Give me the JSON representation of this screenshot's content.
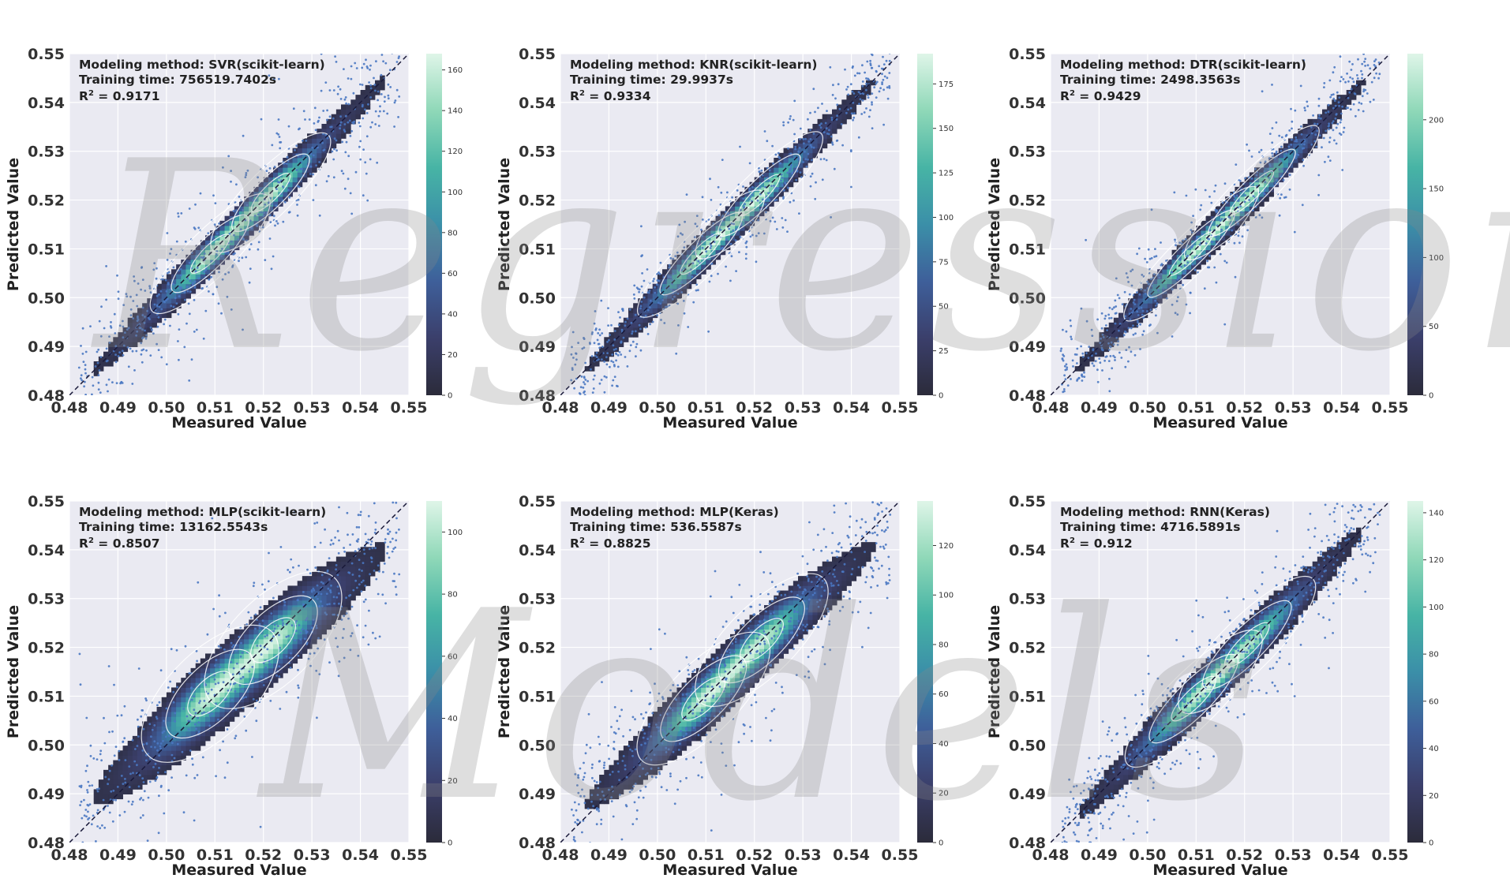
{
  "figure": {
    "watermark_lines": [
      "Regression",
      "Models"
    ],
    "colormap": [
      "#2b2b3a",
      "#3b3f6b",
      "#3e5f9a",
      "#3b8fa8",
      "#47b4a5",
      "#8fd8b8",
      "#dff5e8"
    ]
  },
  "chart_data": [
    {
      "type": "heatmap",
      "method_label": "Modeling method: SVR(scikit-learn)",
      "time_label": "Training time: 756519.7402s",
      "r2_value": "0.9171",
      "xlabel": "Measured Value",
      "ylabel": "Predicted Value",
      "xlim": [
        0.48,
        0.55
      ],
      "ylim": [
        0.48,
        0.55
      ],
      "ticks": [
        "0.48",
        "0.49",
        "0.50",
        "0.51",
        "0.52",
        "0.53",
        "0.54",
        "0.55"
      ],
      "colorbar": {
        "min": 0,
        "max": 168,
        "ticks": [
          0,
          20,
          40,
          60,
          80,
          100,
          120,
          140,
          160
        ]
      },
      "density": {
        "centers": [
          [
            0.509,
            0.509
          ],
          [
            0.5215,
            0.5215
          ]
        ],
        "spread_major": 0.007,
        "spread_minor": 0.0012,
        "slope": 1.0,
        "offset": 0.0,
        "scatter": 0.006
      },
      "reference_line": "y = x",
      "grid": true
    },
    {
      "type": "heatmap",
      "method_label": "Modeling method: KNR(scikit-learn)",
      "time_label": "Training time: 29.9937s",
      "r2_value": "0.9334",
      "xlabel": "Measured Value",
      "ylabel": "Predicted Value",
      "xlim": [
        0.48,
        0.55
      ],
      "ylim": [
        0.48,
        0.55
      ],
      "ticks": [
        "0.48",
        "0.49",
        "0.50",
        "0.51",
        "0.52",
        "0.53",
        "0.54",
        "0.55"
      ],
      "colorbar": {
        "min": 0,
        "max": 192,
        "ticks": [
          0,
          25,
          50,
          75,
          100,
          125,
          150,
          175
        ]
      },
      "density": {
        "centers": [
          [
            0.509,
            0.509
          ],
          [
            0.521,
            0.521
          ]
        ],
        "spread_major": 0.0075,
        "spread_minor": 0.0011,
        "slope": 1.0,
        "offset": 0.0,
        "scatter": 0.005
      },
      "reference_line": "y = x",
      "grid": true
    },
    {
      "type": "heatmap",
      "method_label": "Modeling method: DTR(scikit-learn)",
      "time_label": "Training time: 2498.3563s",
      "r2_value": "0.9429",
      "xlabel": "Measured Value",
      "ylabel": "Predicted Value",
      "xlim": [
        0.48,
        0.55
      ],
      "ylim": [
        0.48,
        0.55
      ],
      "ticks": [
        "0.48",
        "0.49",
        "0.50",
        "0.51",
        "0.52",
        "0.53",
        "0.54",
        "0.55"
      ],
      "colorbar": {
        "min": 0,
        "max": 248,
        "ticks": [
          0,
          50,
          100,
          150,
          200
        ]
      },
      "density": {
        "centers": [
          [
            0.509,
            0.509
          ],
          [
            0.5215,
            0.5215
          ]
        ],
        "spread_major": 0.008,
        "spread_minor": 0.001,
        "slope": 1.0,
        "offset": 0.0,
        "scatter": 0.005
      },
      "reference_line": "y = x",
      "grid": true
    },
    {
      "type": "heatmap",
      "method_label": "Modeling method: MLP(scikit-learn)",
      "time_label": "Training time: 13162.5543s",
      "r2_value": "0.8507",
      "xlabel": "Measured Value",
      "ylabel": "Predicted Value",
      "xlim": [
        0.48,
        0.55
      ],
      "ylim": [
        0.48,
        0.55
      ],
      "ticks": [
        "0.48",
        "0.49",
        "0.50",
        "0.51",
        "0.52",
        "0.53",
        "0.54",
        "0.55"
      ],
      "colorbar": {
        "min": 0,
        "max": 110,
        "ticks": [
          0,
          20,
          40,
          60,
          80,
          100
        ]
      },
      "density": {
        "centers": [
          [
            0.509,
            0.5105
          ],
          [
            0.522,
            0.5215
          ]
        ],
        "spread_major": 0.0075,
        "spread_minor": 0.0022,
        "slope": 0.85,
        "offset": 0.077,
        "scatter": 0.008
      },
      "reference_line": "y = x",
      "grid": true
    },
    {
      "type": "heatmap",
      "method_label": "Modeling method: MLP(Keras)",
      "time_label": "Training time: 536.5587s",
      "r2_value": "0.8825",
      "xlabel": "Measured Value",
      "ylabel": "Predicted Value",
      "xlim": [
        0.48,
        0.55
      ],
      "ylim": [
        0.48,
        0.55
      ],
      "ticks": [
        "0.48",
        "0.49",
        "0.50",
        "0.51",
        "0.52",
        "0.53",
        "0.54",
        "0.55"
      ],
      "colorbar": {
        "min": 0,
        "max": 138,
        "ticks": [
          0,
          20,
          40,
          60,
          80,
          100,
          120
        ]
      },
      "density": {
        "centers": [
          [
            0.5095,
            0.5095
          ],
          [
            0.5215,
            0.5215
          ]
        ],
        "spread_major": 0.0075,
        "spread_minor": 0.0018,
        "slope": 0.9,
        "offset": 0.051,
        "scatter": 0.007
      },
      "reference_line": "y = x",
      "grid": true
    },
    {
      "type": "heatmap",
      "method_label": "Modeling method: RNN(Keras)",
      "time_label": "Training time: 4716.5891s",
      "r2_value": "0.912",
      "xlabel": "Measured Value",
      "ylabel": "Predicted Value",
      "xlim": [
        0.48,
        0.55
      ],
      "ylim": [
        0.48,
        0.55
      ],
      "ticks": [
        "0.48",
        "0.49",
        "0.50",
        "0.51",
        "0.52",
        "0.53",
        "0.54",
        "0.55"
      ],
      "colorbar": {
        "min": 0,
        "max": 145,
        "ticks": [
          0,
          20,
          40,
          60,
          80,
          100,
          120,
          140
        ]
      },
      "density": {
        "centers": [
          [
            0.5095,
            0.5095
          ],
          [
            0.5205,
            0.5205
          ]
        ],
        "spread_major": 0.008,
        "spread_minor": 0.0014,
        "slope": 1.0,
        "offset": 0.0,
        "scatter": 0.006
      },
      "reference_line": "y = x",
      "grid": true
    }
  ]
}
